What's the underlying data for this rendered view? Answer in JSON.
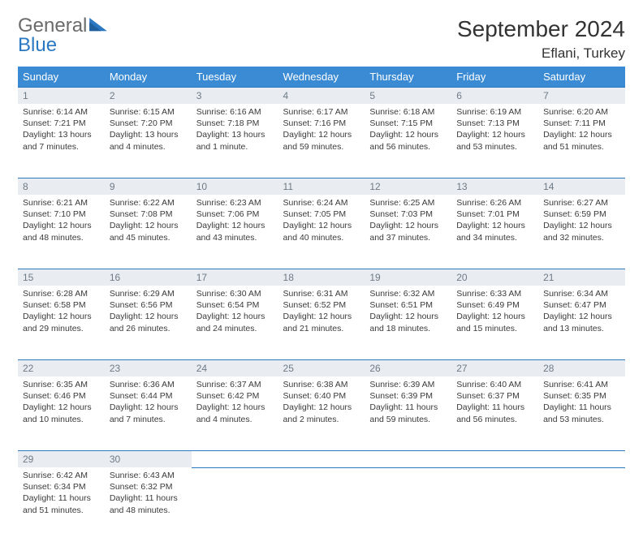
{
  "logo": {
    "word1": "General",
    "word2": "Blue"
  },
  "title": "September 2024",
  "location": "Eflani, Turkey",
  "colors": {
    "header_bg": "#3b8bd4",
    "daynum_bg": "#e9edf1",
    "row_border": "#2b78c2",
    "logo_gray": "#6b6b6b",
    "logo_blue": "#2b78c2"
  },
  "weekdays": [
    "Sunday",
    "Monday",
    "Tuesday",
    "Wednesday",
    "Thursday",
    "Friday",
    "Saturday"
  ],
  "weeks": [
    {
      "nums": [
        "1",
        "2",
        "3",
        "4",
        "5",
        "6",
        "7"
      ],
      "cells": [
        {
          "sunrise": "Sunrise: 6:14 AM",
          "sunset": "Sunset: 7:21 PM",
          "daylight": "Daylight: 13 hours and 7 minutes."
        },
        {
          "sunrise": "Sunrise: 6:15 AM",
          "sunset": "Sunset: 7:20 PM",
          "daylight": "Daylight: 13 hours and 4 minutes."
        },
        {
          "sunrise": "Sunrise: 6:16 AM",
          "sunset": "Sunset: 7:18 PM",
          "daylight": "Daylight: 13 hours and 1 minute."
        },
        {
          "sunrise": "Sunrise: 6:17 AM",
          "sunset": "Sunset: 7:16 PM",
          "daylight": "Daylight: 12 hours and 59 minutes."
        },
        {
          "sunrise": "Sunrise: 6:18 AM",
          "sunset": "Sunset: 7:15 PM",
          "daylight": "Daylight: 12 hours and 56 minutes."
        },
        {
          "sunrise": "Sunrise: 6:19 AM",
          "sunset": "Sunset: 7:13 PM",
          "daylight": "Daylight: 12 hours and 53 minutes."
        },
        {
          "sunrise": "Sunrise: 6:20 AM",
          "sunset": "Sunset: 7:11 PM",
          "daylight": "Daylight: 12 hours and 51 minutes."
        }
      ]
    },
    {
      "nums": [
        "8",
        "9",
        "10",
        "11",
        "12",
        "13",
        "14"
      ],
      "cells": [
        {
          "sunrise": "Sunrise: 6:21 AM",
          "sunset": "Sunset: 7:10 PM",
          "daylight": "Daylight: 12 hours and 48 minutes."
        },
        {
          "sunrise": "Sunrise: 6:22 AM",
          "sunset": "Sunset: 7:08 PM",
          "daylight": "Daylight: 12 hours and 45 minutes."
        },
        {
          "sunrise": "Sunrise: 6:23 AM",
          "sunset": "Sunset: 7:06 PM",
          "daylight": "Daylight: 12 hours and 43 minutes."
        },
        {
          "sunrise": "Sunrise: 6:24 AM",
          "sunset": "Sunset: 7:05 PM",
          "daylight": "Daylight: 12 hours and 40 minutes."
        },
        {
          "sunrise": "Sunrise: 6:25 AM",
          "sunset": "Sunset: 7:03 PM",
          "daylight": "Daylight: 12 hours and 37 minutes."
        },
        {
          "sunrise": "Sunrise: 6:26 AM",
          "sunset": "Sunset: 7:01 PM",
          "daylight": "Daylight: 12 hours and 34 minutes."
        },
        {
          "sunrise": "Sunrise: 6:27 AM",
          "sunset": "Sunset: 6:59 PM",
          "daylight": "Daylight: 12 hours and 32 minutes."
        }
      ]
    },
    {
      "nums": [
        "15",
        "16",
        "17",
        "18",
        "19",
        "20",
        "21"
      ],
      "cells": [
        {
          "sunrise": "Sunrise: 6:28 AM",
          "sunset": "Sunset: 6:58 PM",
          "daylight": "Daylight: 12 hours and 29 minutes."
        },
        {
          "sunrise": "Sunrise: 6:29 AM",
          "sunset": "Sunset: 6:56 PM",
          "daylight": "Daylight: 12 hours and 26 minutes."
        },
        {
          "sunrise": "Sunrise: 6:30 AM",
          "sunset": "Sunset: 6:54 PM",
          "daylight": "Daylight: 12 hours and 24 minutes."
        },
        {
          "sunrise": "Sunrise: 6:31 AM",
          "sunset": "Sunset: 6:52 PM",
          "daylight": "Daylight: 12 hours and 21 minutes."
        },
        {
          "sunrise": "Sunrise: 6:32 AM",
          "sunset": "Sunset: 6:51 PM",
          "daylight": "Daylight: 12 hours and 18 minutes."
        },
        {
          "sunrise": "Sunrise: 6:33 AM",
          "sunset": "Sunset: 6:49 PM",
          "daylight": "Daylight: 12 hours and 15 minutes."
        },
        {
          "sunrise": "Sunrise: 6:34 AM",
          "sunset": "Sunset: 6:47 PM",
          "daylight": "Daylight: 12 hours and 13 minutes."
        }
      ]
    },
    {
      "nums": [
        "22",
        "23",
        "24",
        "25",
        "26",
        "27",
        "28"
      ],
      "cells": [
        {
          "sunrise": "Sunrise: 6:35 AM",
          "sunset": "Sunset: 6:46 PM",
          "daylight": "Daylight: 12 hours and 10 minutes."
        },
        {
          "sunrise": "Sunrise: 6:36 AM",
          "sunset": "Sunset: 6:44 PM",
          "daylight": "Daylight: 12 hours and 7 minutes."
        },
        {
          "sunrise": "Sunrise: 6:37 AM",
          "sunset": "Sunset: 6:42 PM",
          "daylight": "Daylight: 12 hours and 4 minutes."
        },
        {
          "sunrise": "Sunrise: 6:38 AM",
          "sunset": "Sunset: 6:40 PM",
          "daylight": "Daylight: 12 hours and 2 minutes."
        },
        {
          "sunrise": "Sunrise: 6:39 AM",
          "sunset": "Sunset: 6:39 PM",
          "daylight": "Daylight: 11 hours and 59 minutes."
        },
        {
          "sunrise": "Sunrise: 6:40 AM",
          "sunset": "Sunset: 6:37 PM",
          "daylight": "Daylight: 11 hours and 56 minutes."
        },
        {
          "sunrise": "Sunrise: 6:41 AM",
          "sunset": "Sunset: 6:35 PM",
          "daylight": "Daylight: 11 hours and 53 minutes."
        }
      ]
    },
    {
      "nums": [
        "29",
        "30",
        "",
        "",
        "",
        "",
        ""
      ],
      "cells": [
        {
          "sunrise": "Sunrise: 6:42 AM",
          "sunset": "Sunset: 6:34 PM",
          "daylight": "Daylight: 11 hours and 51 minutes."
        },
        {
          "sunrise": "Sunrise: 6:43 AM",
          "sunset": "Sunset: 6:32 PM",
          "daylight": "Daylight: 11 hours and 48 minutes."
        },
        null,
        null,
        null,
        null,
        null
      ]
    }
  ]
}
